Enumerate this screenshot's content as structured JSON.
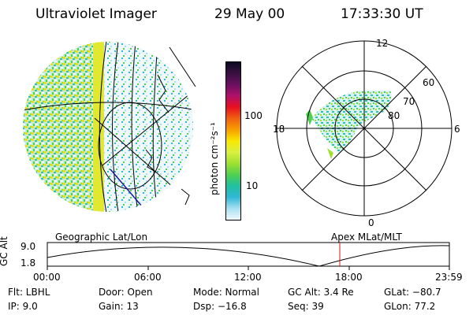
{
  "header": {
    "instrument": "Ultraviolet Imager",
    "date": "29 May 00",
    "time": "17:33:30 UT"
  },
  "colorbar": {
    "label": "photon cm⁻²s⁻¹",
    "ticks": [
      "100",
      "10"
    ],
    "colors": [
      "#0a0a22",
      "#3a1040",
      "#6a1060",
      "#b0106a",
      "#e81020",
      "#f06010",
      "#f8a000",
      "#f8e800",
      "#d8f040",
      "#a0e030",
      "#50d050",
      "#20c0a0",
      "#30b8d8",
      "#a8e0f0",
      "#f0f8ff"
    ]
  },
  "polar": {
    "top_label": "12",
    "bottom_label": "0",
    "left_label": "18",
    "right_label": "6",
    "ring_labels": [
      "60",
      "70",
      "80"
    ]
  },
  "timeline": {
    "left_title": "Geographic Lat/Lon",
    "right_title": "Apex MLat/MLT",
    "axis_label": "GC Alt",
    "y_max": "9.0",
    "y_min": "1.8",
    "x_ticks": [
      "00:00",
      "06:00",
      "12:00",
      "18:00",
      "23:59"
    ],
    "marker_color": "#e01010"
  },
  "info": {
    "flt": "Flt:  LBHL",
    "ip": "IP:  9.0",
    "door": "Door:  Open",
    "gain": "Gain:  13",
    "mode": "Mode:  Normal",
    "dsp": "Dsp:   −16.8",
    "gcalt": "GC Alt:  3.4 Re",
    "seq": "Seq:  39",
    "glat": "GLat:  −80.7",
    "glon": "GLon:  77.2"
  }
}
